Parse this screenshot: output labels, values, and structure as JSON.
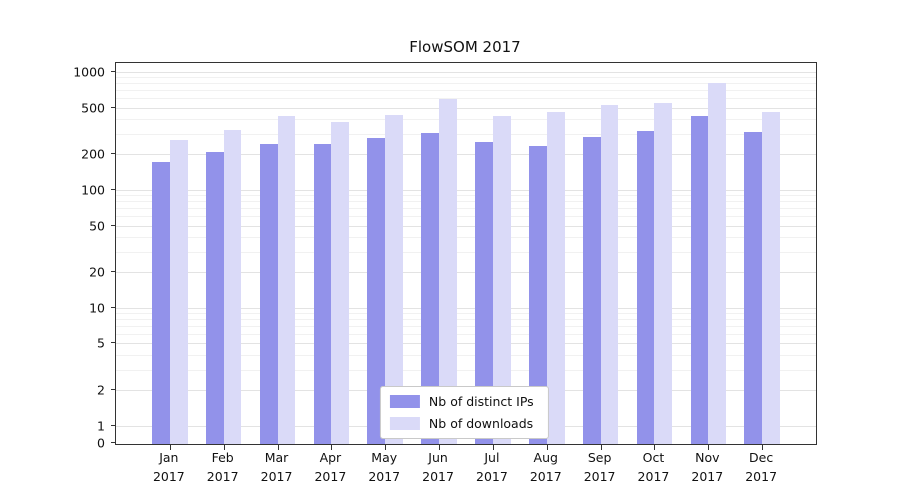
{
  "chart_data": {
    "type": "bar",
    "title": "FlowSOM 2017",
    "xlabel": "",
    "ylabel": "",
    "yscale": "symlog",
    "ylim": [
      0,
      1000
    ],
    "yticks": [
      0,
      1,
      2,
      5,
      10,
      20,
      50,
      100,
      200,
      500,
      1000
    ],
    "grid": "horizontal",
    "legend_position": "bottom-center-inside",
    "year": "2017",
    "categories": [
      "Jan",
      "Feb",
      "Mar",
      "Apr",
      "May",
      "Jun",
      "Jul",
      "Aug",
      "Sep",
      "Oct",
      "Nov",
      "Dec"
    ],
    "series": [
      {
        "name": "Nb of distinct IPs",
        "color": "#9292ea",
        "values": [
          175,
          212,
          248,
          250,
          280,
          310,
          258,
          240,
          288,
          325,
          430,
          315
        ]
      },
      {
        "name": "Nb of downloads",
        "color": "#dadaf8",
        "values": [
          268,
          330,
          435,
          385,
          445,
          600,
          435,
          465,
          535,
          560,
          830,
          465
        ]
      }
    ]
  }
}
